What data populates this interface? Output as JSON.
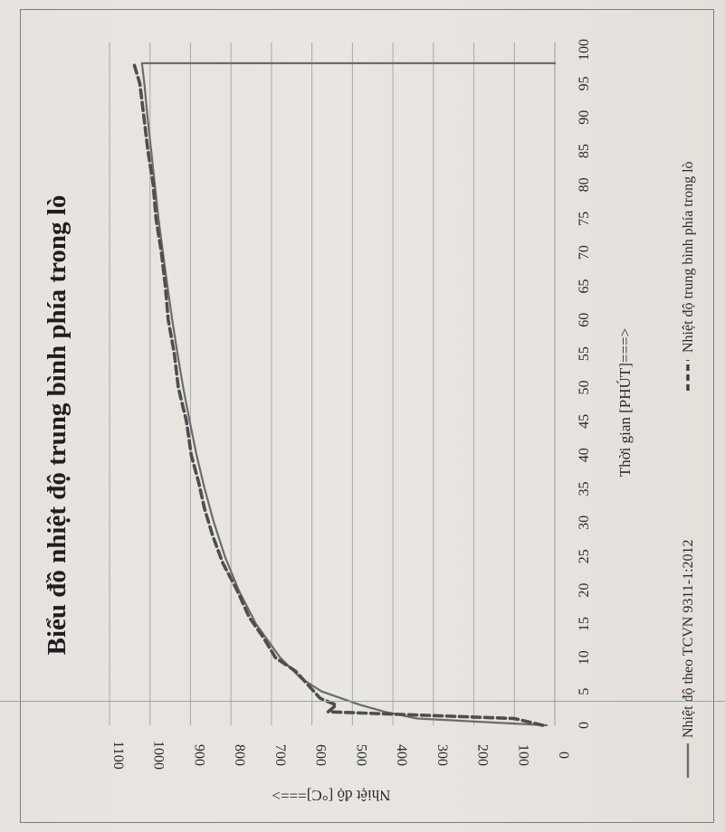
{
  "chart_data": {
    "type": "line",
    "orientation": "rotated-90-cw",
    "title": "Biểu đồ nhiệt độ trung bình phía trong lò",
    "xlabel": "Thời gian [PHÚT]===>",
    "ylabel": "Nhiệt độ [°C]===>",
    "x_ticks": [
      "0",
      "5",
      "10",
      "15",
      "20",
      "25",
      "30",
      "35",
      "40",
      "45",
      "50",
      "55",
      "60",
      "65",
      "70",
      "75",
      "80",
      "85",
      "90",
      "95",
      "100"
    ],
    "y_ticks": [
      "0",
      "100",
      "200",
      "300",
      "400",
      "500",
      "600",
      "700",
      "800",
      "900",
      "1000",
      "1100"
    ],
    "xlim": [
      0,
      100
    ],
    "ylim": [
      0,
      1100
    ],
    "grid": "major y-lines",
    "legend_position": "bottom",
    "series": [
      {
        "name": "Nhiệt độ theo TCVN 9311-1:2012",
        "style": "solid",
        "color": "#6c6c6c",
        "x": [
          0,
          1,
          2,
          3,
          5,
          7,
          10,
          15,
          20,
          25,
          30,
          35,
          40,
          45,
          50,
          55,
          60,
          65,
          70,
          75,
          80,
          85,
          90,
          95,
          98,
          98
        ],
        "y": [
          20,
          340,
          420,
          480,
          576,
          628,
          678,
          738,
          781,
          815,
          842,
          865,
          885,
          902,
          918,
          932,
          945,
          957,
          968,
          979,
          988,
          997,
          1006,
          1014,
          1020,
          0
        ]
      },
      {
        "name": "Nhiệt độ trung bình phía trong lò",
        "style": "dashed",
        "color": "#4e4e4e",
        "x": [
          0,
          1,
          2,
          3,
          4,
          6,
          8,
          10,
          13,
          16,
          20,
          24,
          28,
          32,
          36,
          40,
          45,
          50,
          55,
          60,
          65,
          70,
          75,
          80,
          85,
          90,
          95,
          98
        ],
        "y": [
          30,
          100,
          560,
          540,
          580,
          610,
          640,
          690,
          720,
          755,
          785,
          820,
          845,
          865,
          880,
          898,
          910,
          930,
          940,
          955,
          962,
          972,
          985,
          992,
          1005,
          1015,
          1025,
          1040
        ]
      }
    ]
  }
}
